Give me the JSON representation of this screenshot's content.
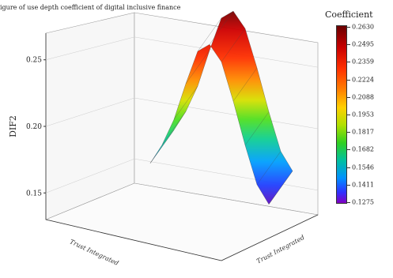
{
  "chart_data": {
    "type": "surface3d",
    "title": "igure of use depth coefficient of digital inclusive finance",
    "zlabel": "DIF2",
    "xlabel": "Trust Integrated",
    "ylabel": "Trust Integrated",
    "z_ticks": [
      "0.15",
      "0.20",
      "0.25"
    ],
    "zlim": [
      0.13,
      0.27
    ],
    "colorbar": {
      "title": "Coefficient",
      "ticks": [
        "0.2630",
        "0.2495",
        "0.2359",
        "0.2224",
        "0.2088",
        "0.1953",
        "0.1817",
        "0.1682",
        "0.1546",
        "0.1411",
        "0.1275"
      ]
    },
    "surface_profile": {
      "t": [
        0.0,
        0.1,
        0.2,
        0.3,
        0.4,
        0.5,
        0.6,
        0.7,
        0.8,
        0.9,
        1.0
      ],
      "z": [
        0.15,
        0.168,
        0.192,
        0.225,
        0.255,
        0.263,
        0.25,
        0.218,
        0.182,
        0.15,
        0.135
      ]
    },
    "colors": {
      "high": "#6a0000",
      "mid": "#ffd000",
      "low": "#8000c0"
    }
  }
}
